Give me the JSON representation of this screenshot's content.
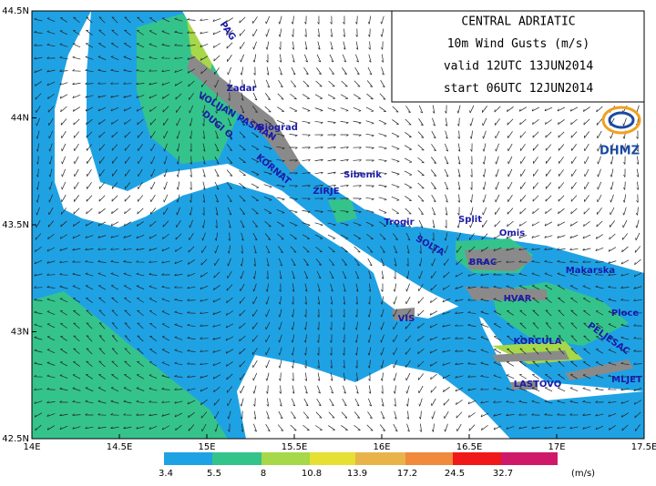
{
  "title_box": {
    "lines": [
      "CENTRAL ADRIATIC",
      "10m Wind Gusts (m/s)",
      "valid 12UTC 13JUN2014",
      "start 06UTC 12JUN2014"
    ]
  },
  "logo": "DHMZ",
  "lon_ticks": [
    "14E",
    "14.5E",
    "15E",
    "15.5E",
    "16E",
    "16.5E",
    "17E",
    "17.5E"
  ],
  "lat_ticks": [
    "44.5N",
    "44N",
    "43.5N",
    "43N",
    "42.5N"
  ],
  "places": [
    "PAG",
    "Zadar",
    "VOLIJAN PASMAN",
    "DUGI O.",
    "Biograd",
    "KORNAT",
    "Sibenik",
    "ZIRJE",
    "Trogir",
    "Split",
    "Omis",
    "SOLTA",
    "BRAC",
    "Makarska",
    "HVAR",
    "VIS",
    "Ploce",
    "PELJESAC",
    "KORCULA",
    "LASTOVO",
    "MLJET"
  ],
  "legend": {
    "levels": [
      3.4,
      5.5,
      8,
      10.8,
      13.9,
      17.2,
      24.5,
      32.7
    ],
    "unit": "(m/s)"
  }
}
